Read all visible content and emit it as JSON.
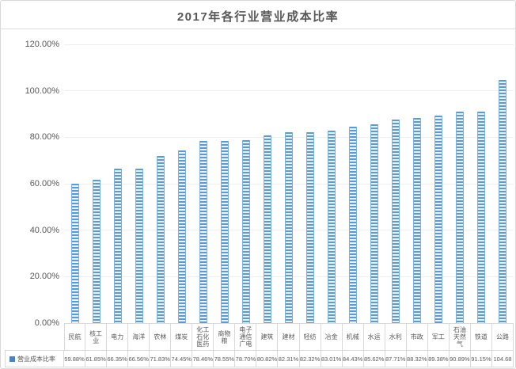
{
  "chart_data": {
    "type": "bar",
    "title": "2017年各行业营业成本比率",
    "series_name": "营业成本比率",
    "categories": [
      "民航",
      "核工业",
      "电力",
      "海洋",
      "农林",
      "煤炭",
      "化工石化医药",
      "商物粮",
      "电子通信广电",
      "建筑",
      "建材",
      "轻纺",
      "冶金",
      "机械",
      "水运",
      "水利",
      "市政",
      "军工",
      "石油天然气",
      "铁道",
      "公路"
    ],
    "values": [
      59.88,
      61.85,
      66.35,
      66.56,
      71.83,
      74.45,
      78.46,
      78.55,
      78.7,
      80.82,
      82.31,
      82.32,
      83.01,
      84.43,
      85.62,
      87.71,
      88.32,
      89.38,
      90.89,
      91.15,
      104.68
    ],
    "value_labels": [
      "59.88%",
      "61.85%",
      "66.35%",
      "66.56%",
      "71.83%",
      "74.45%",
      "78.46%",
      "78.55%",
      "78.70%",
      "80.82%",
      "82.31%",
      "82.32%",
      "83.01%",
      "84.43%",
      "85.62%",
      "87.71%",
      "88.32%",
      "89.38%",
      "90.89%",
      "91.15%",
      "104.68"
    ],
    "ylim": [
      0,
      120
    ],
    "yticks": [
      {
        "value": 0,
        "label": "0.00%"
      },
      {
        "value": 20,
        "label": "20.00%"
      },
      {
        "value": 40,
        "label": "40.00%"
      },
      {
        "value": 60,
        "label": "60.00%"
      },
      {
        "value": 80,
        "label": "80.00%"
      },
      {
        "value": 100,
        "label": "100.00%"
      },
      {
        "value": 120,
        "label": "120.00%"
      }
    ],
    "grid": true,
    "legend_position": "table-left",
    "bar_color": "#5b9bd5",
    "bar_stripe_light": "#e9f1f9",
    "legend_swatch_color": "#4e81bd",
    "text_color": "#595959",
    "table_border_color": "#d9d9d9"
  }
}
